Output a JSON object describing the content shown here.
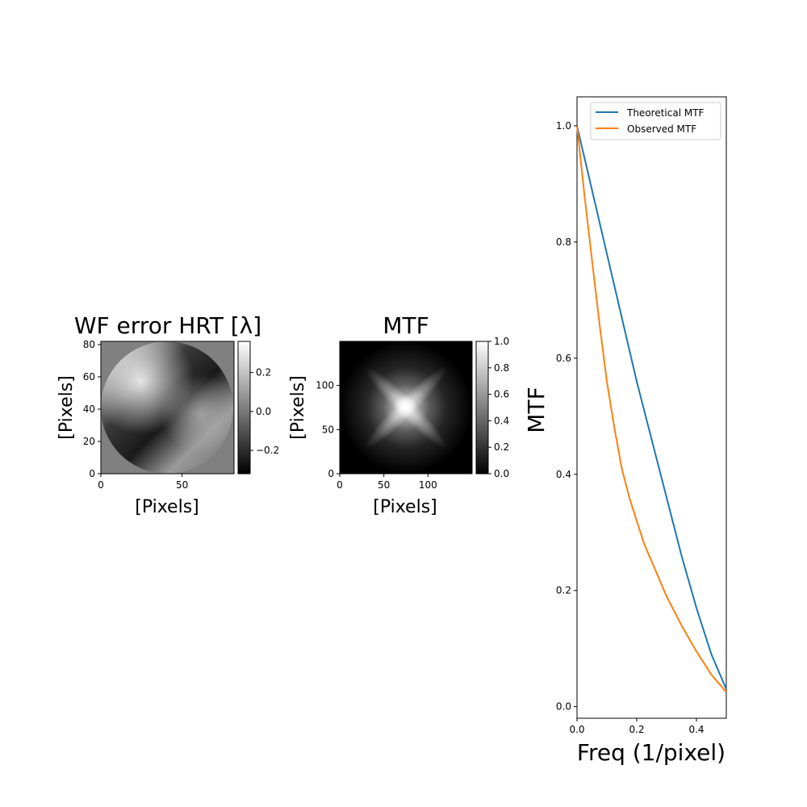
{
  "chart_data": [
    {
      "type": "heatmap",
      "title": "WF error HRT [λ]",
      "xlabel": "[Pixels]",
      "ylabel": "[Pixels]",
      "xlim": [
        0,
        82
      ],
      "ylim": [
        0,
        82
      ],
      "xticks": [
        "0",
        "50"
      ],
      "yticks": [
        "0",
        "20",
        "40",
        "60",
        "80"
      ],
      "colormap": "gray",
      "colorbar": {
        "range": [
          -0.32,
          0.36
        ],
        "ticks": [
          "−0.2",
          "0.0",
          "0.2"
        ]
      },
      "description_values": {
        "aperture": "circular",
        "outside_value": 0.0
      }
    },
    {
      "type": "heatmap",
      "title": "MTF",
      "xlabel": "[Pixels]",
      "ylabel": "[Pixels]",
      "xlim": [
        0,
        150
      ],
      "ylim": [
        0,
        150
      ],
      "xticks": [
        "0",
        "50",
        "100"
      ],
      "yticks": [
        "0",
        "50",
        "100"
      ],
      "colormap": "gray",
      "colorbar": {
        "range": [
          0.0,
          1.0
        ],
        "ticks": [
          "0.0",
          "0.2",
          "0.4",
          "0.6",
          "0.8",
          "1.0"
        ]
      }
    },
    {
      "type": "line",
      "xlabel": "Freq (1/pixel)",
      "ylabel": "MTF",
      "xlim": [
        0,
        0.5
      ],
      "ylim": [
        -0.02,
        1.05
      ],
      "xticks": [
        "0.0",
        "0.2",
        "0.4"
      ],
      "yticks": [
        "0.0",
        "0.2",
        "0.4",
        "0.6",
        "0.8",
        "1.0"
      ],
      "legend": "top-right",
      "series": [
        {
          "name": "Theoretical MTF",
          "color": "#1f77b4",
          "x": [
            0,
            0.05,
            0.1,
            0.15,
            0.2,
            0.25,
            0.3,
            0.35,
            0.4,
            0.45,
            0.5
          ],
          "y": [
            1.0,
            0.89,
            0.78,
            0.67,
            0.56,
            0.46,
            0.36,
            0.26,
            0.17,
            0.09,
            0.03
          ]
        },
        {
          "name": "Observed MTF",
          "color": "#ff7f0e",
          "x": [
            0,
            0.025,
            0.05,
            0.075,
            0.1,
            0.125,
            0.15,
            0.175,
            0.2,
            0.225,
            0.25,
            0.3,
            0.35,
            0.4,
            0.45,
            0.5
          ],
          "y": [
            1.0,
            0.88,
            0.77,
            0.66,
            0.56,
            0.48,
            0.41,
            0.36,
            0.32,
            0.28,
            0.25,
            0.19,
            0.14,
            0.095,
            0.055,
            0.025
          ]
        }
      ]
    }
  ]
}
